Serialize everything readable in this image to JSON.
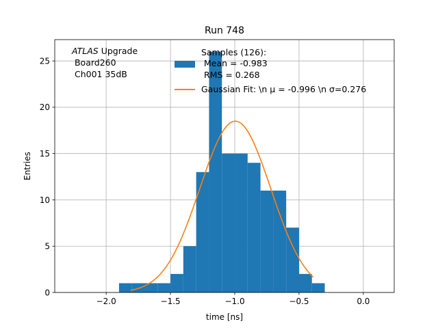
{
  "chart_data": {
    "type": "bar",
    "title": "Run 748",
    "xlabel": "time [ns]",
    "ylabel": "Entries",
    "xlim": [
      -2.4,
      0.24
    ],
    "ylim": [
      0,
      27.3
    ],
    "grid": true,
    "xticks": [
      -2.0,
      -1.5,
      -1.0,
      -0.5,
      0.0
    ],
    "xtick_labels": [
      "−2.0",
      "−1.5",
      "−1.0",
      "−0.5",
      "0.0"
    ],
    "yticks": [
      0,
      5,
      10,
      15,
      20,
      25
    ],
    "ytick_labels": [
      "0",
      "5",
      "10",
      "15",
      "20",
      "25"
    ],
    "histogram": {
      "name": "Samples (126):",
      "color": "#1f77b4",
      "bins": [
        {
          "x0": -1.9,
          "x1": -1.8,
          "count": 1
        },
        {
          "x0": -1.8,
          "x1": -1.7,
          "count": 1
        },
        {
          "x0": -1.7,
          "x1": -1.6,
          "count": 1
        },
        {
          "x0": -1.6,
          "x1": -1.5,
          "count": 1
        },
        {
          "x0": -1.5,
          "x1": -1.4,
          "count": 2
        },
        {
          "x0": -1.4,
          "x1": -1.3,
          "count": 5
        },
        {
          "x0": -1.3,
          "x1": -1.2,
          "count": 13
        },
        {
          "x0": -1.2,
          "x1": -1.1,
          "count": 26
        },
        {
          "x0": -1.1,
          "x1": -1.0,
          "count": 15
        },
        {
          "x0": -1.0,
          "x1": -0.9,
          "count": 15
        },
        {
          "x0": -0.9,
          "x1": -0.8,
          "count": 14
        },
        {
          "x0": -0.8,
          "x1": -0.7,
          "count": 11
        },
        {
          "x0": -0.7,
          "x1": -0.6,
          "count": 11
        },
        {
          "x0": -0.6,
          "x1": -0.5,
          "count": 7
        },
        {
          "x0": -0.5,
          "x1": -0.4,
          "count": 2
        },
        {
          "x0": -0.4,
          "x1": -0.3,
          "count": 1
        }
      ]
    },
    "fit": {
      "name": "Gaussian Fit",
      "color": "#ff7f0e",
      "mu": -0.996,
      "sigma": 0.276,
      "amplitude": 18.5,
      "x_range": [
        -1.81,
        -0.39
      ]
    },
    "legend": {
      "placement": "top-center",
      "samples_title": "Samples (126):",
      "samples_mean": " Mean = -0.983",
      "samples_rms": " RMS = 0.268",
      "fit_label": "Gaussian Fit: \\n μ = -0.996 \\n σ=0.276"
    },
    "annotation": {
      "atlas_italic": "ATLAS",
      "atlas_rest": " Upgrade",
      "line2": " Board260",
      "line3": " Ch001 35dB"
    }
  }
}
